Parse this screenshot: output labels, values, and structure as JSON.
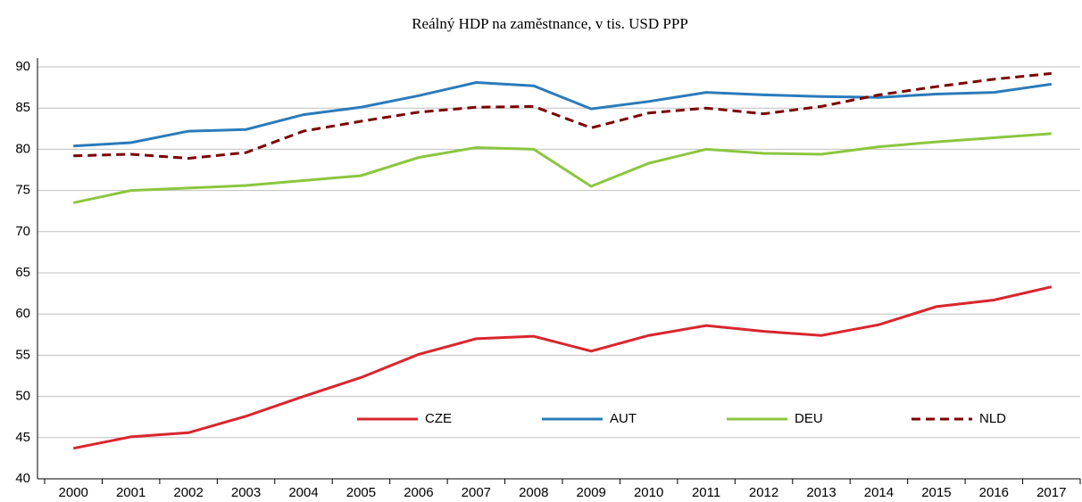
{
  "chart_data": {
    "type": "line",
    "title": "Reálný HDP na zaměstnance, v tis. USD PPP",
    "categories": [
      "2000",
      "2001",
      "2002",
      "2003",
      "2004",
      "2005",
      "2006",
      "2007",
      "2008",
      "2009",
      "2010",
      "2011",
      "2012",
      "2013",
      "2014",
      "2015",
      "2016",
      "2017"
    ],
    "series": [
      {
        "name": "CZE",
        "color": "#d9262e",
        "style": "solid",
        "values": [
          43.7,
          45.1,
          45.6,
          47.6,
          50.0,
          52.3,
          55.1,
          57.0,
          57.3,
          55.5,
          57.4,
          58.6,
          57.9,
          57.4,
          58.7,
          60.9,
          61.7,
          63.3
        ]
      },
      {
        "name": "AUT",
        "color": "#2b7bba",
        "style": "solid",
        "values": [
          80.4,
          80.8,
          82.2,
          82.4,
          84.2,
          85.1,
          86.5,
          88.1,
          87.7,
          84.9,
          85.8,
          86.9,
          86.6,
          86.4,
          86.3,
          86.7,
          86.9,
          87.9
        ]
      },
      {
        "name": "DEU",
        "color": "#8cc63f",
        "style": "solid",
        "values": [
          73.5,
          75.0,
          75.3,
          75.6,
          76.2,
          76.8,
          79.0,
          80.2,
          80.0,
          75.5,
          78.3,
          80.0,
          79.5,
          79.4,
          80.3,
          80.9,
          81.4,
          81.9
        ]
      },
      {
        "name": "NLD",
        "color": "#7b0000",
        "style": "dashed",
        "values": [
          79.2,
          79.4,
          78.9,
          79.6,
          82.2,
          83.4,
          84.5,
          85.1,
          85.2,
          82.6,
          84.4,
          85.0,
          84.3,
          85.2,
          86.6,
          87.6,
          88.5,
          89.2
        ]
      }
    ],
    "ylim": [
      40,
      90
    ],
    "yticks": [
      40,
      45,
      50,
      55,
      60,
      65,
      70,
      75,
      80,
      85,
      90
    ],
    "grid": true,
    "legend": "inside-bottom"
  }
}
